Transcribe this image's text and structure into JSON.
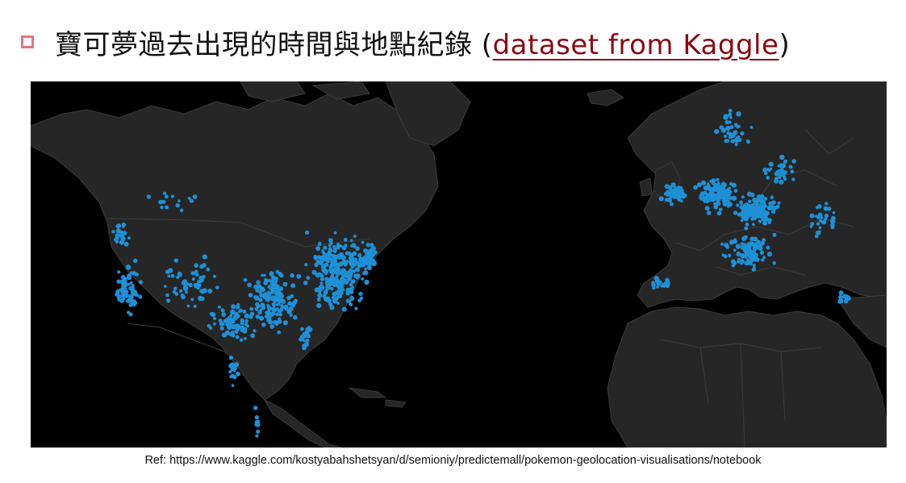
{
  "title": {
    "main": "寶可夢過去出現的時間與地點紀錄 (",
    "link": "dataset from Kaggle",
    "close": ")"
  },
  "colors": {
    "bullet": "#e5737d",
    "link": "#8b0a12",
    "map_background": "#000000",
    "land": "#262626",
    "borders": "#3d3d3d",
    "points": "#1e90d6"
  },
  "map": {
    "description_icon": "map-of-north-america-and-europe",
    "legend": null
  },
  "reference": "Ref: https://www.kaggle.com/kostyabahshetsyan/d/semioniy/predictemall/pokemon-geolocation-visualisations/notebook"
}
